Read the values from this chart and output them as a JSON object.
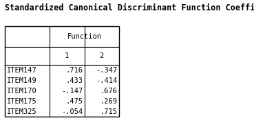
{
  "title": "Standardized Canonical Discriminant Function Coefficients",
  "col_header_level1": "Function",
  "col_header_level2": [
    "1",
    "2"
  ],
  "row_labels": [
    "ITEM147",
    "ITEM149",
    "ITEM170",
    "ITEM175",
    "ITEM325"
  ],
  "values": [
    [
      ".716",
      "-.347"
    ],
    [
      ".433",
      "-.414"
    ],
    [
      "-.147",
      ".676"
    ],
    [
      ".475",
      ".269"
    ],
    [
      "-.054",
      ".715"
    ]
  ],
  "title_fontsize": 8.5,
  "table_fontsize": 7.5,
  "bg_color": "#ffffff",
  "text_color": "#000000",
  "border_color": "#000000"
}
